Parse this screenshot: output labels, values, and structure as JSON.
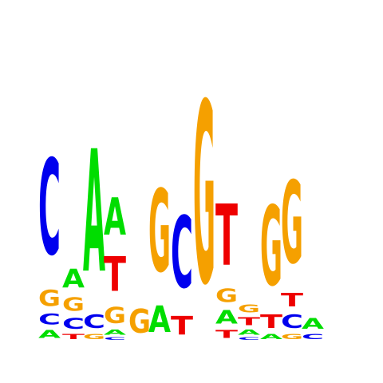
{
  "chart_data": {
    "type": "sequence-logo",
    "title": "",
    "xlabel": "",
    "ylabel": "",
    "colors": {
      "A": "#00dd00",
      "C": "#0000ee",
      "G": "#f5a000",
      "T": "#ee0000"
    },
    "positions": [
      {
        "index": 1,
        "letters": [
          {
            "base": "A",
            "height": 0.03
          },
          {
            "base": "C",
            "height": 0.04
          },
          {
            "base": "G",
            "height": 0.06
          },
          {
            "base": "C",
            "height": 0.36
          }
        ]
      },
      {
        "index": 2,
        "letters": [
          {
            "base": "T",
            "height": 0.02
          },
          {
            "base": "C",
            "height": 0.04
          },
          {
            "base": "G",
            "height": 0.05
          },
          {
            "base": "A",
            "height": 0.07
          }
        ]
      },
      {
        "index": 3,
        "letters": [
          {
            "base": "G",
            "height": 0.02
          },
          {
            "base": "C",
            "height": 0.05
          },
          {
            "base": "A",
            "height": 0.46
          }
        ]
      },
      {
        "index": 4,
        "letters": [
          {
            "base": "C",
            "height": 0.01
          },
          {
            "base": "A",
            "height": 0.02
          },
          {
            "base": "G",
            "height": 0.06
          },
          {
            "base": "T",
            "height": 0.13
          },
          {
            "base": "A",
            "height": 0.14
          }
        ]
      },
      {
        "index": 5,
        "letters": [
          {
            "base": "G",
            "height": 0.09
          }
        ]
      },
      {
        "index": 6,
        "letters": [
          {
            "base": "A",
            "height": 0.1
          },
          {
            "base": "G",
            "height": 0.31
          }
        ]
      },
      {
        "index": 7,
        "letters": [
          {
            "base": "T",
            "height": 0.07
          },
          {
            "base": "C",
            "height": 0.27
          }
        ]
      },
      {
        "index": 8,
        "letters": [
          {
            "base": "G",
            "height": 0.68
          }
        ]
      },
      {
        "index": 9,
        "letters": [
          {
            "base": "T",
            "height": 0.03
          },
          {
            "base": "A",
            "height": 0.05
          },
          {
            "base": "G",
            "height": 0.05
          },
          {
            "base": "T",
            "height": 0.23
          }
        ]
      },
      {
        "index": 10,
        "letters": [
          {
            "base": "C",
            "height": 0.01
          },
          {
            "base": "A",
            "height": 0.02
          },
          {
            "base": "T",
            "height": 0.03
          },
          {
            "base": "G",
            "height": 0.03
          }
        ]
      },
      {
        "index": 11,
        "letters": [
          {
            "base": "A",
            "height": 0.02
          },
          {
            "base": "T",
            "height": 0.05
          },
          {
            "base": "G",
            "height": 0.3
          }
        ]
      },
      {
        "index": 12,
        "letters": [
          {
            "base": "G",
            "height": 0.02
          },
          {
            "base": "C",
            "height": 0.05
          },
          {
            "base": "T",
            "height": 0.05
          },
          {
            "base": "G",
            "height": 0.31
          }
        ]
      },
      {
        "index": 13,
        "letters": [
          {
            "base": "C",
            "height": 0.02
          },
          {
            "base": "A",
            "height": 0.04
          }
        ]
      }
    ]
  }
}
